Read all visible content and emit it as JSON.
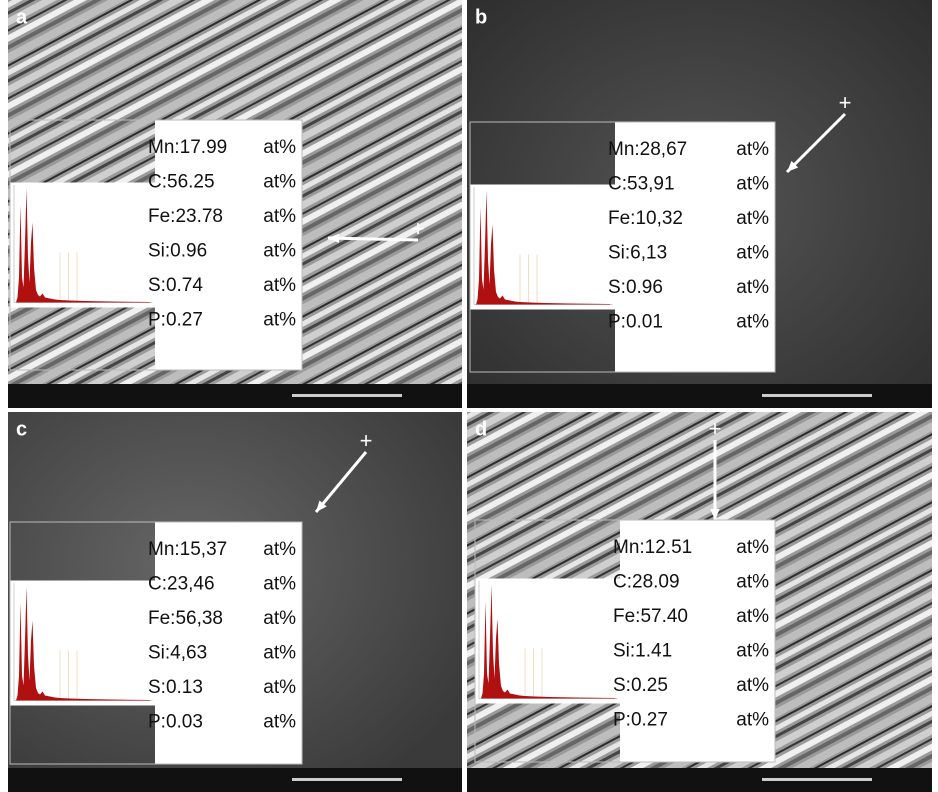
{
  "panels": [
    {
      "label": "a",
      "elements": [
        {
          "text": "Mn:17.99",
          "unit": "at%"
        },
        {
          "text": "C:56.25",
          "unit": "at%"
        },
        {
          "text": "Fe:23.78",
          "unit": "at%"
        },
        {
          "text": "Si:0.96",
          "unit": "at%"
        },
        {
          "text": "S:0.74",
          "unit": "at%"
        },
        {
          "text": "P:0.27",
          "unit": "at%"
        }
      ]
    },
    {
      "label": "b",
      "elements": [
        {
          "text": "Mn:28,67",
          "unit": "at%"
        },
        {
          "text": "C:53,91",
          "unit": "at%"
        },
        {
          "text": "Fe:10,32",
          "unit": "at%"
        },
        {
          "text": "Si:6,13",
          "unit": "at%"
        },
        {
          "text": "S:0.96",
          "unit": "at%"
        },
        {
          "text": "P:0.01",
          "unit": "at%"
        }
      ]
    },
    {
      "label": "c",
      "elements": [
        {
          "text": "Mn:15,37",
          "unit": "at%"
        },
        {
          "text": "C:23,46",
          "unit": "at%"
        },
        {
          "text": "Fe:56,38",
          "unit": "at%"
        },
        {
          "text": "Si:4,63",
          "unit": "at%"
        },
        {
          "text": "S:0.13",
          "unit": "at%"
        },
        {
          "text": "P:0.03",
          "unit": "at%"
        }
      ]
    },
    {
      "label": "d",
      "elements": [
        {
          "text": "Mn:12.51",
          "unit": "at%"
        },
        {
          "text": "C:28.09",
          "unit": "at%"
        },
        {
          "text": "Fe:57.40",
          "unit": "at%"
        },
        {
          "text": "Si:1.41",
          "unit": "at%"
        },
        {
          "text": "S:0.25",
          "unit": "at%"
        },
        {
          "text": "P:0.27",
          "unit": "at%"
        }
      ]
    }
  ]
}
